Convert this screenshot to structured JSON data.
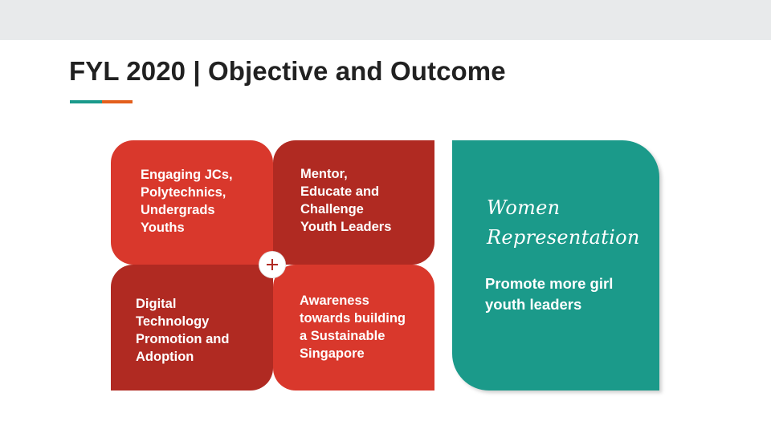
{
  "slide": {
    "title": "FYL 2020 | Objective and Outcome",
    "accent_colors": {
      "teal": "#1a9a8b",
      "orange": "#e35f1c"
    },
    "quadrants": [
      {
        "id": "q1",
        "text": "Engaging JCs,\nPolytechnics,\nUndergrads\nYouths",
        "color": "#d9382c"
      },
      {
        "id": "q2",
        "text": "Mentor,\nEducate and\nChallenge\nYouth Leaders",
        "color": "#b02a22"
      },
      {
        "id": "q3",
        "text": "Digital\nTechnology\nPromotion and\nAdoption",
        "color": "#b02a22"
      },
      {
        "id": "q4",
        "text": "Awareness\ntowards building\na Sustainable\nSingapore",
        "color": "#d9382c"
      }
    ],
    "center_icon": "plus-icon",
    "outcome_card": {
      "heading": "Women\nRepresentation",
      "text": "Promote more girl youth leaders",
      "color": "#1b9a8a"
    }
  }
}
